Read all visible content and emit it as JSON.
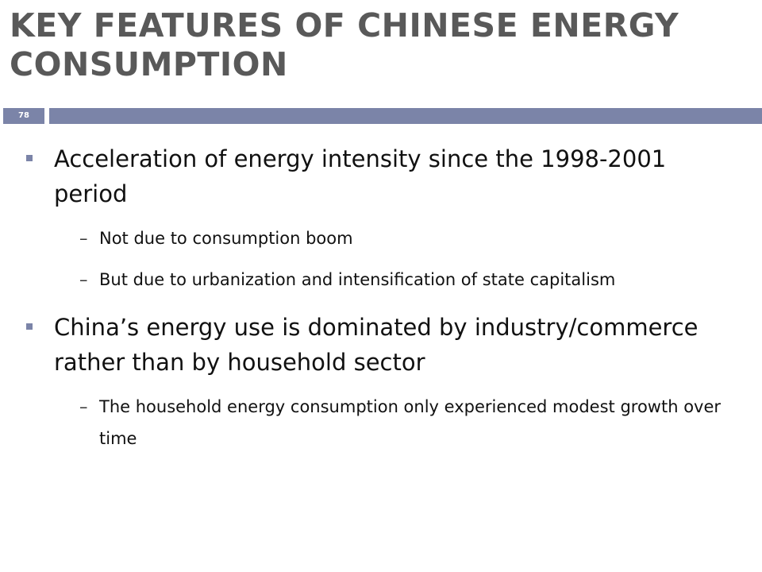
{
  "slide": {
    "title": "KEY FEATURES OF CHINESE ENERGY CONSUMPTION",
    "page_number": "78",
    "accent_color": "#7b84a8",
    "title_color": "#595959"
  },
  "bullets": [
    {
      "text": "Acceleration of energy intensity since the 1998-2001 period",
      "sub": [
        "Not due to consumption boom",
        "But due to urbanization and intensification of state capitalism"
      ]
    },
    {
      "text": "China’s energy use is dominated by industry/commerce rather than by household sector",
      "sub": [
        "The household energy consumption only experienced modest growth over time"
      ]
    }
  ],
  "markers": {
    "level1": "square-bullet",
    "level2": "–"
  }
}
